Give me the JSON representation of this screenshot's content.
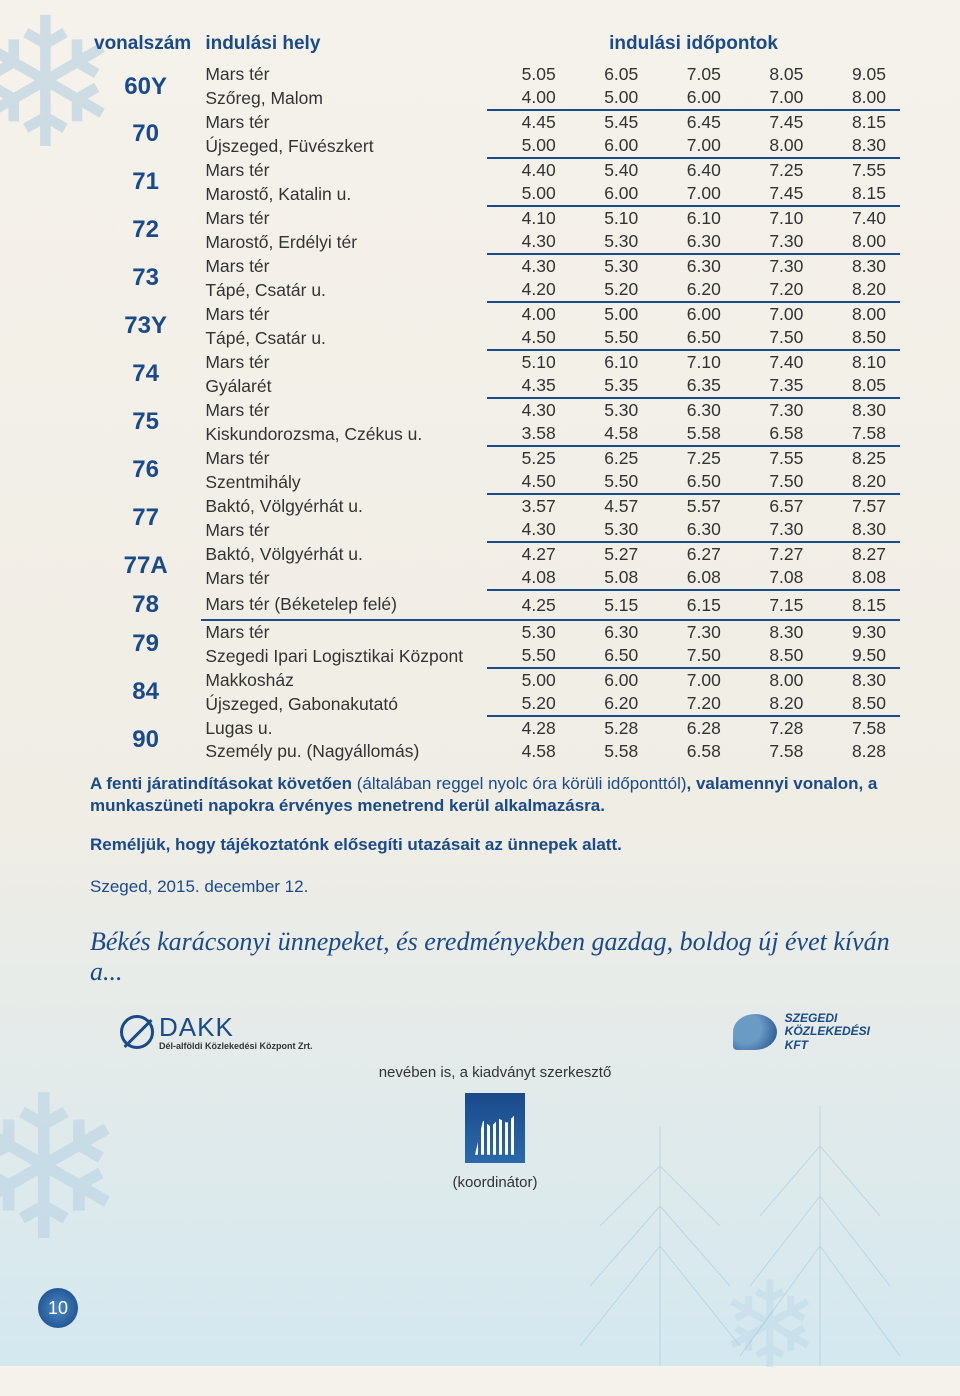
{
  "header": {
    "line": "vonalszám",
    "place": "indulási hely",
    "times": "indulási időpontok"
  },
  "rows": [
    {
      "line": "60Y",
      "r": [
        {
          "p": "Mars tér",
          "t": [
            "5.05",
            "6.05",
            "7.05",
            "8.05",
            "9.05"
          ]
        },
        {
          "p": "Szőreg, Malom",
          "t": [
            "4.00",
            "5.00",
            "6.00",
            "7.00",
            "8.00"
          ]
        }
      ]
    },
    {
      "line": "70",
      "r": [
        {
          "p": "Mars tér",
          "t": [
            "4.45",
            "5.45",
            "6.45",
            "7.45",
            "8.15"
          ]
        },
        {
          "p": "Újszeged, Füvészkert",
          "t": [
            "5.00",
            "6.00",
            "7.00",
            "8.00",
            "8.30"
          ]
        }
      ]
    },
    {
      "line": "71",
      "r": [
        {
          "p": "Mars tér",
          "t": [
            "4.40",
            "5.40",
            "6.40",
            "7.25",
            "7.55"
          ]
        },
        {
          "p": "Marostő, Katalin u.",
          "t": [
            "5.00",
            "6.00",
            "7.00",
            "7.45",
            "8.15"
          ]
        }
      ]
    },
    {
      "line": "72",
      "r": [
        {
          "p": "Mars tér",
          "t": [
            "4.10",
            "5.10",
            "6.10",
            "7.10",
            "7.40"
          ]
        },
        {
          "p": "Marostő, Erdélyi tér",
          "t": [
            "4.30",
            "5.30",
            "6.30",
            "7.30",
            "8.00"
          ]
        }
      ]
    },
    {
      "line": "73",
      "r": [
        {
          "p": "Mars tér",
          "t": [
            "4.30",
            "5.30",
            "6.30",
            "7.30",
            "8.30"
          ]
        },
        {
          "p": "Tápé, Csatár u.",
          "t": [
            "4.20",
            "5.20",
            "6.20",
            "7.20",
            "8.20"
          ]
        }
      ]
    },
    {
      "line": "73Y",
      "r": [
        {
          "p": "Mars tér",
          "t": [
            "4.00",
            "5.00",
            "6.00",
            "7.00",
            "8.00"
          ]
        },
        {
          "p": "Tápé, Csatár u.",
          "t": [
            "4.50",
            "5.50",
            "6.50",
            "7.50",
            "8.50"
          ]
        }
      ]
    },
    {
      "line": "74",
      "r": [
        {
          "p": "Mars tér",
          "t": [
            "5.10",
            "6.10",
            "7.10",
            "7.40",
            "8.10"
          ]
        },
        {
          "p": "Gyálarét",
          "t": [
            "4.35",
            "5.35",
            "6.35",
            "7.35",
            "8.05"
          ]
        }
      ]
    },
    {
      "line": "75",
      "r": [
        {
          "p": "Mars tér",
          "t": [
            "4.30",
            "5.30",
            "6.30",
            "7.30",
            "8.30"
          ]
        },
        {
          "p": "Kiskundorozsma, Czékus u.",
          "t": [
            "3.58",
            "4.58",
            "5.58",
            "6.58",
            "7.58"
          ]
        }
      ]
    },
    {
      "line": "76",
      "r": [
        {
          "p": "Mars tér",
          "t": [
            "5.25",
            "6.25",
            "7.25",
            "7.55",
            "8.25"
          ]
        },
        {
          "p": "Szentmihály",
          "t": [
            "4.50",
            "5.50",
            "6.50",
            "7.50",
            "8.20"
          ]
        }
      ]
    },
    {
      "line": "77",
      "r": [
        {
          "p": "Baktó, Völgyérhát u.",
          "t": [
            "3.57",
            "4.57",
            "5.57",
            "6.57",
            "7.57"
          ]
        },
        {
          "p": "Mars tér",
          "t": [
            "4.30",
            "5.30",
            "6.30",
            "7.30",
            "8.30"
          ]
        }
      ]
    },
    {
      "line": "77A",
      "r": [
        {
          "p": "Baktó, Völgyérhát u.",
          "t": [
            "4.27",
            "5.27",
            "6.27",
            "7.27",
            "8.27"
          ]
        },
        {
          "p": "Mars tér",
          "t": [
            "4.08",
            "5.08",
            "6.08",
            "7.08",
            "8.08"
          ]
        }
      ]
    },
    {
      "line": "78",
      "r": [
        {
          "p": "Mars tér (Béketelep felé)",
          "t": [
            "4.25",
            "5.15",
            "6.15",
            "7.15",
            "8.15"
          ]
        }
      ]
    },
    {
      "line": "79",
      "r": [
        {
          "p": "Mars tér",
          "t": [
            "5.30",
            "6.30",
            "7.30",
            "8.30",
            "9.30"
          ]
        },
        {
          "p": "Szegedi Ipari Logisztikai Központ",
          "t": [
            "5.50",
            "6.50",
            "7.50",
            "8.50",
            "9.50"
          ]
        }
      ]
    },
    {
      "line": "84",
      "r": [
        {
          "p": "Makkosház",
          "t": [
            "5.00",
            "6.00",
            "7.00",
            "8.00",
            "8.30"
          ]
        },
        {
          "p": "Újszeged, Gabonakutató",
          "t": [
            "5.20",
            "6.20",
            "7.20",
            "8.20",
            "8.50"
          ]
        }
      ]
    },
    {
      "line": "90",
      "r": [
        {
          "p": "Lugas u.",
          "t": [
            "4.28",
            "5.28",
            "6.28",
            "7.28",
            "7.58"
          ]
        },
        {
          "p": "Személy pu. (Nagyállomás)",
          "t": [
            "4.58",
            "5.58",
            "6.58",
            "7.58",
            "8.28"
          ]
        }
      ]
    }
  ],
  "note": {
    "prefix": "A fenti járatindításokat követően",
    "mid": " (általában reggel nyolc óra körüli időponttól)",
    "suffix": ", valamennyi vonalon, a munkaszüneti napokra érvényes menetrend kerül alkalmazásra."
  },
  "note2": "Reméljük, hogy tájékoztatónk elősegíti utazásait az ünnepek alatt.",
  "date": "Szeged, 2015. december 12.",
  "greeting": "Békés karácsonyi ünnepeket, és eredményekben gazdag, boldog új évet kíván a...",
  "dakk": {
    "name": "DAKK",
    "sub": "Dél-alföldi Közlekedési Központ Zrt."
  },
  "szkt": {
    "l1": "SZEGEDI",
    "l2": "KÖZLEKEDÉSI",
    "l3": "KFT"
  },
  "mid_text": "nevében is, a kiadványt szerkesztő",
  "coord_text": "(koordinátor)",
  "page_no": "10",
  "colors": {
    "primary": "#1a4a8a",
    "text": "#333333",
    "bg_top": "#f5f2eb",
    "bg_bottom": "#d4e8f0",
    "snowflake": "#a8c8e0",
    "tree": "#6ba8c8"
  }
}
